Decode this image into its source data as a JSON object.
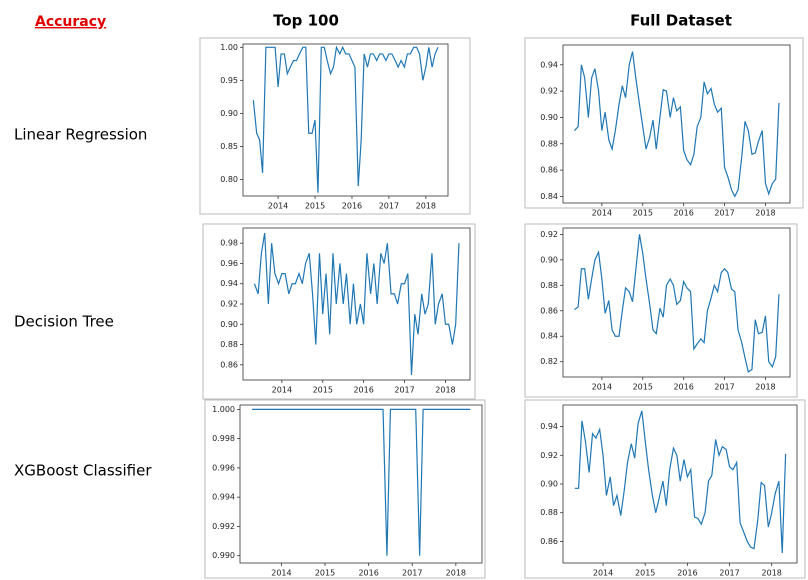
{
  "title": "Accuracy",
  "columns": [
    "Top 100",
    "Full Dataset"
  ],
  "rows": [
    "Linear Regression",
    "Decision Tree",
    "XGBoost Classifier"
  ],
  "chart_data": [
    {
      "type": "line",
      "color": "#1f77b4",
      "x": [
        2013.33,
        2013.42,
        2013.5,
        2013.58,
        2013.67,
        2013.75,
        2013.83,
        2013.92,
        2014,
        2014.08,
        2014.17,
        2014.25,
        2014.33,
        2014.42,
        2014.5,
        2014.58,
        2014.67,
        2014.75,
        2014.83,
        2014.92,
        2015,
        2015.08,
        2015.17,
        2015.25,
        2015.33,
        2015.42,
        2015.5,
        2015.58,
        2015.67,
        2015.75,
        2015.83,
        2015.92,
        2016,
        2016.08,
        2016.17,
        2016.25,
        2016.33,
        2016.42,
        2016.5,
        2016.58,
        2016.67,
        2016.75,
        2016.83,
        2016.92,
        2017,
        2017.08,
        2017.17,
        2017.25,
        2017.33,
        2017.42,
        2017.5,
        2017.58,
        2017.67,
        2017.75,
        2017.83,
        2017.92,
        2018,
        2018.08,
        2018.17,
        2018.25,
        2018.33
      ],
      "values": [
        0.92,
        0.87,
        0.86,
        0.81,
        1.0,
        1.0,
        1.0,
        1.0,
        0.94,
        0.99,
        0.99,
        0.96,
        0.97,
        0.98,
        0.98,
        0.99,
        1.0,
        1.0,
        0.87,
        0.87,
        0.89,
        0.78,
        1.0,
        1.0,
        0.98,
        0.96,
        0.97,
        1.0,
        0.99,
        1.0,
        0.99,
        0.99,
        0.98,
        0.97,
        0.79,
        0.86,
        0.99,
        0.97,
        0.99,
        0.99,
        0.98,
        0.99,
        0.99,
        0.98,
        0.99,
        0.99,
        0.98,
        0.97,
        0.98,
        0.97,
        0.99,
        0.99,
        1.0,
        1.0,
        0.99,
        0.95,
        0.97,
        1.0,
        0.97,
        0.99,
        1.0
      ],
      "xlim": [
        2013.05,
        2018.6
      ],
      "xticks": [
        2014,
        2015,
        2016,
        2017,
        2018
      ],
      "ylim": [
        0.775,
        1.005
      ],
      "yticks": [
        {
          "value": 0.8,
          "label": "0.80"
        },
        0.85,
        {
          "value": 0.9,
          "label": "0.90"
        },
        0.95,
        {
          "value": 1.0,
          "label": "1.00"
        }
      ]
    },
    {
      "type": "line",
      "color": "#1f77b4",
      "x": [
        2013.33,
        2013.42,
        2013.5,
        2013.58,
        2013.67,
        2013.75,
        2013.83,
        2013.92,
        2014,
        2014.08,
        2014.17,
        2014.25,
        2014.33,
        2014.42,
        2014.5,
        2014.58,
        2014.67,
        2014.75,
        2014.83,
        2014.92,
        2015,
        2015.08,
        2015.17,
        2015.25,
        2015.33,
        2015.42,
        2015.5,
        2015.58,
        2015.67,
        2015.75,
        2015.83,
        2015.92,
        2016,
        2016.08,
        2016.17,
        2016.25,
        2016.33,
        2016.42,
        2016.5,
        2016.58,
        2016.67,
        2016.75,
        2016.83,
        2016.92,
        2017,
        2017.08,
        2017.17,
        2017.25,
        2017.33,
        2017.42,
        2017.5,
        2017.58,
        2017.67,
        2017.75,
        2017.83,
        2017.92,
        2018,
        2018.08,
        2018.17,
        2018.25,
        2018.33
      ],
      "values": [
        0.89,
        0.893,
        0.94,
        0.93,
        0.9,
        0.93,
        0.937,
        0.92,
        0.89,
        0.904,
        0.883,
        0.876,
        0.89,
        0.91,
        0.924,
        0.915,
        0.94,
        0.95,
        0.93,
        0.91,
        0.893,
        0.876,
        0.885,
        0.898,
        0.876,
        0.9,
        0.921,
        0.92,
        0.9,
        0.915,
        0.905,
        0.908,
        0.875,
        0.868,
        0.864,
        0.872,
        0.893,
        0.9,
        0.927,
        0.918,
        0.922,
        0.91,
        0.904,
        0.907,
        0.862,
        0.855,
        0.845,
        0.84,
        0.845,
        0.87,
        0.897,
        0.89,
        0.872,
        0.873,
        0.882,
        0.89,
        0.85,
        0.842,
        0.85,
        0.853,
        0.911
      ],
      "xlim": [
        2013.05,
        2018.6
      ],
      "xticks": [
        2014,
        2015,
        2016,
        2017,
        2018
      ],
      "ylim": [
        0.835,
        0.955
      ],
      "yticks": [
        0.84,
        0.86,
        0.88,
        {
          "value": 0.9,
          "label": "0.90"
        },
        0.92,
        0.94
      ]
    },
    {
      "type": "line",
      "color": "#1f77b4",
      "x": [
        2013.33,
        2013.42,
        2013.5,
        2013.58,
        2013.67,
        2013.75,
        2013.83,
        2013.92,
        2014,
        2014.08,
        2014.17,
        2014.25,
        2014.33,
        2014.42,
        2014.5,
        2014.58,
        2014.67,
        2014.75,
        2014.83,
        2014.92,
        2015,
        2015.08,
        2015.17,
        2015.25,
        2015.33,
        2015.42,
        2015.5,
        2015.58,
        2015.67,
        2015.75,
        2015.83,
        2015.92,
        2016,
        2016.08,
        2016.17,
        2016.25,
        2016.33,
        2016.42,
        2016.5,
        2016.58,
        2016.67,
        2016.75,
        2016.83,
        2016.92,
        2017,
        2017.08,
        2017.17,
        2017.25,
        2017.33,
        2017.42,
        2017.5,
        2017.58,
        2017.67,
        2017.75,
        2017.83,
        2017.92,
        2018,
        2018.08,
        2018.17,
        2018.25,
        2018.33
      ],
      "values": [
        0.94,
        0.93,
        0.97,
        0.99,
        0.92,
        0.98,
        0.95,
        0.94,
        0.95,
        0.95,
        0.93,
        0.94,
        0.94,
        0.95,
        0.94,
        0.96,
        0.97,
        0.93,
        0.88,
        0.97,
        0.91,
        0.95,
        0.89,
        0.97,
        0.92,
        0.96,
        0.92,
        0.95,
        0.9,
        0.94,
        0.9,
        0.92,
        0.9,
        0.97,
        0.93,
        0.96,
        0.92,
        0.97,
        0.96,
        0.98,
        0.93,
        0.93,
        0.92,
        0.94,
        0.94,
        0.95,
        0.85,
        0.91,
        0.89,
        0.93,
        0.91,
        0.92,
        0.97,
        0.9,
        0.92,
        0.93,
        0.9,
        0.9,
        0.88,
        0.9,
        0.98
      ],
      "xlim": [
        2013.05,
        2018.6
      ],
      "xticks": [
        2014,
        2015,
        2016,
        2017,
        2018
      ],
      "ylim": [
        0.845,
        0.995
      ],
      "yticks": [
        0.86,
        0.88,
        {
          "value": 0.9,
          "label": "0.90"
        },
        0.92,
        0.94,
        0.96,
        0.98
      ]
    },
    {
      "type": "line",
      "color": "#1f77b4",
      "x": [
        2013.33,
        2013.42,
        2013.5,
        2013.58,
        2013.67,
        2013.75,
        2013.83,
        2013.92,
        2014,
        2014.08,
        2014.17,
        2014.25,
        2014.33,
        2014.42,
        2014.5,
        2014.58,
        2014.67,
        2014.75,
        2014.83,
        2014.92,
        2015,
        2015.08,
        2015.17,
        2015.25,
        2015.33,
        2015.42,
        2015.5,
        2015.58,
        2015.67,
        2015.75,
        2015.83,
        2015.92,
        2016,
        2016.08,
        2016.17,
        2016.25,
        2016.33,
        2016.42,
        2016.5,
        2016.58,
        2016.67,
        2016.75,
        2016.83,
        2016.92,
        2017,
        2017.08,
        2017.17,
        2017.25,
        2017.33,
        2017.42,
        2017.5,
        2017.58,
        2017.67,
        2017.75,
        2017.83,
        2017.92,
        2018,
        2018.08,
        2018.17,
        2018.25,
        2018.33
      ],
      "values": [
        0.861,
        0.863,
        0.893,
        0.893,
        0.869,
        0.885,
        0.9,
        0.906,
        0.885,
        0.858,
        0.868,
        0.845,
        0.84,
        0.84,
        0.86,
        0.878,
        0.875,
        0.867,
        0.892,
        0.92,
        0.905,
        0.885,
        0.865,
        0.845,
        0.842,
        0.862,
        0.855,
        0.88,
        0.885,
        0.88,
        0.865,
        0.868,
        0.883,
        0.878,
        0.875,
        0.83,
        0.834,
        0.838,
        0.835,
        0.86,
        0.87,
        0.88,
        0.875,
        0.89,
        0.893,
        0.89,
        0.877,
        0.875,
        0.845,
        0.835,
        0.823,
        0.812,
        0.814,
        0.853,
        0.842,
        0.843,
        0.856,
        0.82,
        0.816,
        0.824,
        0.873
      ],
      "xlim": [
        2013.05,
        2018.6
      ],
      "xticks": [
        2014,
        2015,
        2016,
        2017,
        2018
      ],
      "ylim": [
        0.808,
        0.925
      ],
      "yticks": [
        0.82,
        0.84,
        0.86,
        0.88,
        {
          "value": 0.9,
          "label": "0.90"
        },
        0.92
      ]
    },
    {
      "type": "line",
      "color": "#1f77b4",
      "x": [
        2013.33,
        2013.42,
        2013.5,
        2013.58,
        2013.67,
        2013.75,
        2013.83,
        2013.92,
        2014,
        2014.08,
        2014.17,
        2014.25,
        2014.33,
        2014.42,
        2014.5,
        2014.58,
        2014.67,
        2014.75,
        2014.83,
        2014.92,
        2015,
        2015.08,
        2015.17,
        2015.25,
        2015.33,
        2015.42,
        2015.5,
        2015.58,
        2015.67,
        2015.75,
        2015.83,
        2015.92,
        2016,
        2016.08,
        2016.17,
        2016.25,
        2016.33,
        2016.42,
        2016.5,
        2016.58,
        2016.67,
        2016.75,
        2016.83,
        2016.92,
        2017,
        2017.08,
        2017.17,
        2017.25,
        2017.33,
        2017.42,
        2017.5,
        2017.58,
        2017.67,
        2017.75,
        2017.83,
        2017.92,
        2018,
        2018.08,
        2018.17,
        2018.25,
        2018.33
      ],
      "values": [
        1,
        1,
        1,
        1,
        1,
        1,
        1,
        1,
        1,
        1,
        1,
        1,
        1,
        1,
        1,
        1,
        1,
        1,
        1,
        1,
        1,
        1,
        1,
        1,
        1,
        1,
        1,
        1,
        1,
        1,
        1,
        1,
        1,
        1,
        1,
        1,
        1,
        0.99,
        1,
        1,
        1,
        1,
        1,
        1,
        1,
        1,
        0.99,
        1,
        1,
        1,
        1,
        1,
        1,
        1,
        1,
        1,
        1,
        1,
        1,
        1,
        1
      ],
      "xlim": [
        2013.05,
        2018.6
      ],
      "xticks": [
        2014,
        2015,
        2016,
        2017,
        2018
      ],
      "ylim": [
        0.9895,
        1.0003
      ],
      "yticks": [
        {
          "value": 0.99,
          "label": "0.990"
        },
        0.992,
        0.994,
        0.996,
        0.998,
        {
          "value": 1.0,
          "label": "1.000"
        }
      ]
    },
    {
      "type": "line",
      "color": "#1f77b4",
      "x": [
        2013.33,
        2013.42,
        2013.5,
        2013.58,
        2013.67,
        2013.75,
        2013.83,
        2013.92,
        2014,
        2014.08,
        2014.17,
        2014.25,
        2014.33,
        2014.42,
        2014.5,
        2014.58,
        2014.67,
        2014.75,
        2014.83,
        2014.92,
        2015,
        2015.08,
        2015.17,
        2015.25,
        2015.33,
        2015.42,
        2015.5,
        2015.58,
        2015.67,
        2015.75,
        2015.83,
        2015.92,
        2016,
        2016.08,
        2016.17,
        2016.25,
        2016.33,
        2016.42,
        2016.5,
        2016.58,
        2016.67,
        2016.75,
        2016.83,
        2016.92,
        2017,
        2017.08,
        2017.17,
        2017.25,
        2017.33,
        2017.42,
        2017.5,
        2017.58,
        2017.67,
        2017.75,
        2017.83,
        2017.92,
        2018,
        2018.08,
        2018.17,
        2018.25,
        2018.33
      ],
      "values": [
        0.897,
        0.897,
        0.944,
        0.93,
        0.908,
        0.935,
        0.932,
        0.938,
        0.92,
        0.892,
        0.905,
        0.885,
        0.892,
        0.878,
        0.895,
        0.915,
        0.928,
        0.918,
        0.942,
        0.951,
        0.93,
        0.91,
        0.892,
        0.88,
        0.89,
        0.902,
        0.885,
        0.91,
        0.925,
        0.92,
        0.902,
        0.917,
        0.905,
        0.91,
        0.877,
        0.876,
        0.872,
        0.88,
        0.902,
        0.906,
        0.931,
        0.92,
        0.926,
        0.924,
        0.912,
        0.91,
        0.915,
        0.873,
        0.867,
        0.86,
        0.856,
        0.855,
        0.875,
        0.901,
        0.899,
        0.87,
        0.88,
        0.893,
        0.902,
        0.852,
        0.921
      ],
      "xlim": [
        2013.05,
        2018.6
      ],
      "xticks": [
        2014,
        2015,
        2016,
        2017,
        2018
      ],
      "ylim": [
        0.845,
        0.955
      ],
      "yticks": [
        0.86,
        0.88,
        {
          "value": 0.9,
          "label": "0.90"
        },
        0.92,
        0.94
      ]
    }
  ]
}
